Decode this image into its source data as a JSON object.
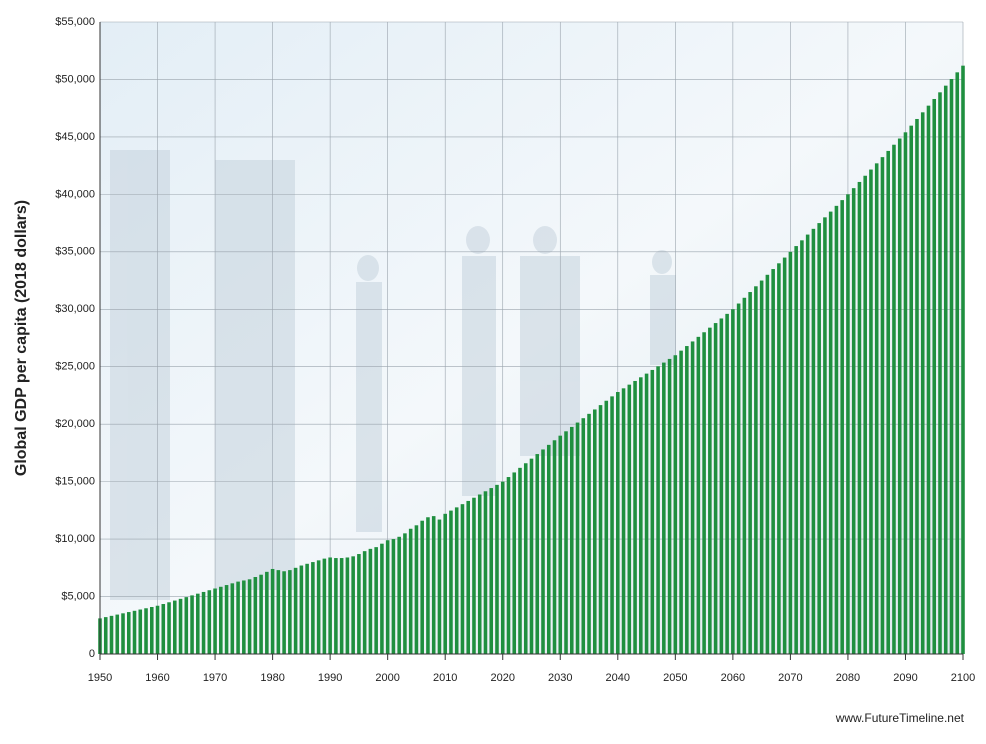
{
  "chart_data": {
    "type": "bar",
    "y_label": "Global GDP per capita (2018 dollars)",
    "source": "www.FutureTimeline.net",
    "color": "#1f8f3f",
    "grid": true,
    "x": [
      1950,
      1951,
      1952,
      1953,
      1954,
      1955,
      1956,
      1957,
      1958,
      1959,
      1960,
      1961,
      1962,
      1963,
      1964,
      1965,
      1966,
      1967,
      1968,
      1969,
      1970,
      1971,
      1972,
      1973,
      1974,
      1975,
      1976,
      1977,
      1978,
      1979,
      1980,
      1981,
      1982,
      1983,
      1984,
      1985,
      1986,
      1987,
      1988,
      1989,
      1990,
      1991,
      1992,
      1993,
      1994,
      1995,
      1996,
      1997,
      1998,
      1999,
      2000,
      2001,
      2002,
      2003,
      2004,
      2005,
      2006,
      2007,
      2008,
      2009,
      2010,
      2011,
      2012,
      2013,
      2014,
      2015,
      2016,
      2017,
      2018,
      2019,
      2020,
      2021,
      2022,
      2023,
      2024,
      2025,
      2026,
      2027,
      2028,
      2029,
      2030,
      2031,
      2032,
      2033,
      2034,
      2035,
      2036,
      2037,
      2038,
      2039,
      2040,
      2041,
      2042,
      2043,
      2044,
      2045,
      2046,
      2047,
      2048,
      2049,
      2050,
      2051,
      2052,
      2053,
      2054,
      2055,
      2056,
      2057,
      2058,
      2059,
      2060,
      2061,
      2062,
      2063,
      2064,
      2065,
      2066,
      2067,
      2068,
      2069,
      2070,
      2071,
      2072,
      2073,
      2074,
      2075,
      2076,
      2077,
      2078,
      2079,
      2080,
      2081,
      2082,
      2083,
      2084,
      2085,
      2086,
      2087,
      2088,
      2089,
      2090,
      2091,
      2092,
      2093,
      2094,
      2095,
      2096,
      2097,
      2098,
      2099,
      2100
    ],
    "values": [
      3100,
      3210,
      3320,
      3430,
      3540,
      3650,
      3760,
      3870,
      3980,
      4090,
      4200,
      4350,
      4500,
      4650,
      4800,
      4950,
      5100,
      5250,
      5400,
      5550,
      5700,
      5850,
      6000,
      6150,
      6300,
      6400,
      6500,
      6700,
      6900,
      7150,
      7400,
      7300,
      7200,
      7300,
      7500,
      7700,
      7850,
      8000,
      8150,
      8300,
      8400,
      8350,
      8350,
      8400,
      8500,
      8700,
      8950,
      9150,
      9300,
      9600,
      9900,
      10000,
      10200,
      10500,
      10900,
      11200,
      11600,
      11900,
      12000,
      11700,
      12200,
      12480,
      12760,
      13040,
      13320,
      13600,
      13880,
      14160,
      14440,
      14720,
      15000,
      15400,
      15800,
      16200,
      16600,
      17000,
      17400,
      17800,
      18200,
      18600,
      19000,
      19380,
      19760,
      20140,
      20520,
      20900,
      21280,
      21660,
      22040,
      22420,
      22800,
      23120,
      23440,
      23760,
      24080,
      24400,
      24720,
      25040,
      25360,
      25680,
      26000,
      26400,
      26800,
      27200,
      27600,
      28000,
      28400,
      28800,
      29200,
      29600,
      30000,
      30500,
      31000,
      31500,
      32000,
      32500,
      33000,
      33500,
      34000,
      34500,
      35000,
      35500,
      36000,
      36500,
      37000,
      37500,
      38000,
      38500,
      39000,
      39500,
      40000,
      40540,
      41080,
      41620,
      42160,
      42700,
      43240,
      43780,
      44320,
      44860,
      45400,
      45980,
      46560,
      47140,
      47720,
      48300,
      48880,
      49460,
      50040,
      50620,
      51200
    ],
    "xlim": [
      1950,
      2100
    ],
    "xticks": [
      1950,
      1960,
      1970,
      1980,
      1990,
      2000,
      2010,
      2020,
      2030,
      2040,
      2050,
      2060,
      2070,
      2080,
      2090,
      2100
    ],
    "ylim": [
      0,
      55000
    ],
    "yticks": [
      0,
      {
        "value": 5000,
        "label": "$5,000"
      },
      {
        "value": 10000,
        "label": "$10,000"
      },
      {
        "value": 15000,
        "label": "$15,000"
      },
      {
        "value": 20000,
        "label": "$20,000"
      },
      {
        "value": 25000,
        "label": "$25,000"
      },
      {
        "value": 30000,
        "label": "$30,000"
      },
      {
        "value": 35000,
        "label": "$35,000"
      },
      {
        "value": 40000,
        "label": "$40,000"
      },
      {
        "value": 45000,
        "label": "$45,000"
      },
      {
        "value": 50000,
        "label": "$50,000"
      },
      {
        "value": 55000,
        "label": "$55,000"
      }
    ]
  }
}
